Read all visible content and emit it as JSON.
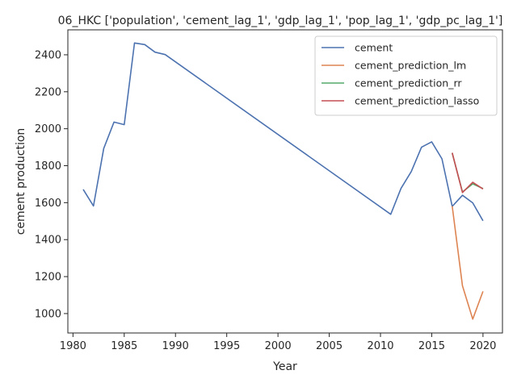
{
  "chart_data": {
    "type": "line",
    "title": "06_HKC ['population', 'cement_lag_1', 'gdp_lag_1', 'pop_lag_1', 'gdp_pc_lag_1']",
    "xlabel": "Year",
    "ylabel": "cement production",
    "xlim": [
      1979.5,
      2021.9
    ],
    "ylim": [
      895,
      2535
    ],
    "xticks": [
      1980,
      1985,
      1990,
      1995,
      2000,
      2005,
      2010,
      2015,
      2020
    ],
    "yticks": [
      1000,
      1200,
      1400,
      1600,
      1800,
      2000,
      2200,
      2400
    ],
    "grid": false,
    "legend_position": "top-right",
    "series": [
      {
        "name": "cement",
        "color": "#4c72b0",
        "x": [
          1981,
          1982,
          1983,
          1984,
          1985,
          1986,
          1987,
          1988,
          1989,
          2011,
          2012,
          2013,
          2014,
          2015,
          2016,
          2017,
          2018,
          2019,
          2020
        ],
        "y": [
          1672,
          1582,
          1893,
          2036,
          2022,
          2464,
          2455,
          2414,
          2401,
          1537,
          1677,
          1768,
          1900,
          1929,
          1837,
          1580,
          1640,
          1599,
          1502
        ]
      },
      {
        "name": "cement_prediction_lm",
        "color": "#dd8452",
        "x": [
          2017,
          2018,
          2019,
          2020
        ],
        "y": [
          1581,
          1150,
          970,
          1120
        ]
      },
      {
        "name": "cement_prediction_rr",
        "color": "#55a868",
        "x": [
          2017,
          2018,
          2019,
          2020
        ],
        "y": [
          1868,
          1658,
          1702,
          1676
        ]
      },
      {
        "name": "cement_prediction_lasso",
        "color": "#c44e52",
        "x": [
          2017,
          2018,
          2019,
          2020
        ],
        "y": [
          1870,
          1655,
          1710,
          1674
        ]
      }
    ]
  }
}
